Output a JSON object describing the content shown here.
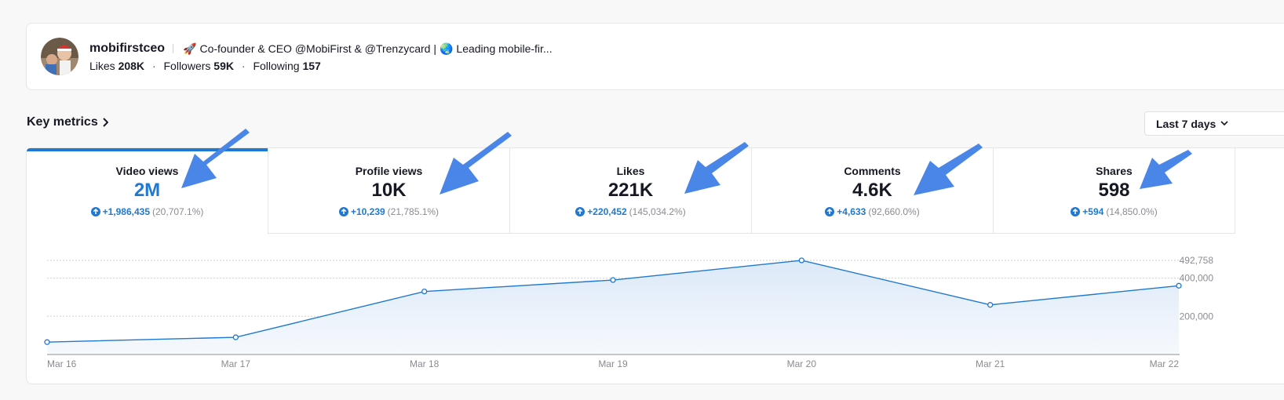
{
  "profile": {
    "username": "mobifirstceo",
    "bio_rocket_emoji": "🚀",
    "bio_text": "Co-founder & CEO @MobiFirst & @Trenzycard | ",
    "bio_globe_emoji": "🌏",
    "bio_text2": " Leading mobile-fir...",
    "likes_label": "Likes",
    "likes_value": "208K",
    "followers_label": "Followers",
    "followers_value": "59K",
    "following_label": "Following",
    "following_value": "157",
    "dot": "·"
  },
  "section": {
    "title": "Key metrics",
    "period_label": "Last 7 days"
  },
  "metrics": [
    {
      "label": "Video views",
      "value": "2M",
      "delta": "+1,986,435",
      "pct": "(20,707.1%)"
    },
    {
      "label": "Profile views",
      "value": "10K",
      "delta": "+10,239",
      "pct": "(21,785.1%)"
    },
    {
      "label": "Likes",
      "value": "221K",
      "delta": "+220,452",
      "pct": "(145,034.2%)"
    },
    {
      "label": "Comments",
      "value": "4.6K",
      "delta": "+4,633",
      "pct": "(92,660.0%)"
    },
    {
      "label": "Shares",
      "value": "598",
      "delta": "+594",
      "pct": "(14,850.0%)"
    }
  ],
  "colors": {
    "accent": "#1f78d1",
    "arrow": "#4a86e8",
    "area_fill": "#e6f0fb"
  },
  "chart_data": {
    "type": "area",
    "title": "",
    "xlabel": "",
    "ylabel": "",
    "categories": [
      "Mar 16",
      "Mar 17",
      "Mar 18",
      "Mar 19",
      "Mar 20",
      "Mar 21",
      "Mar 22"
    ],
    "values": [
      65000,
      90000,
      330000,
      390000,
      492758,
      260000,
      360000
    ],
    "ylim": [
      0,
      492758
    ],
    "yticks": [
      200000,
      400000,
      492758
    ],
    "ytick_labels": [
      "200,000",
      "400,000",
      "492,758"
    ],
    "grid": true
  }
}
